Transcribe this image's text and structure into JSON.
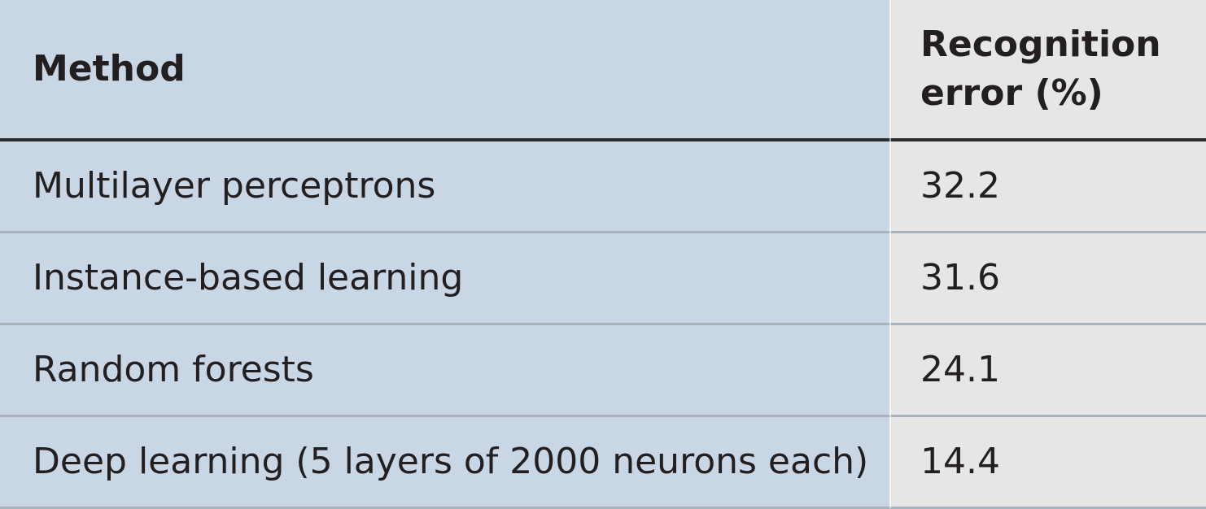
{
  "table": {
    "headers": {
      "method": "Method",
      "error": "Recognition error (%)"
    },
    "rows": [
      {
        "method": "Multilayer perceptrons",
        "error": "32.2"
      },
      {
        "method": "Instance-based learning",
        "error": "31.6"
      },
      {
        "method": "Random forests",
        "error": "24.1"
      },
      {
        "method": "Deep learning (5 layers of 2000 neurons each)",
        "error": "14.4"
      }
    ]
  },
  "colors": {
    "method_column_bg": "#c8d6e6",
    "error_column_bg": "#e6e6e6",
    "header_rule": "#2b2b2b",
    "row_rule": "#a9b3bd",
    "text": "#231f20"
  }
}
